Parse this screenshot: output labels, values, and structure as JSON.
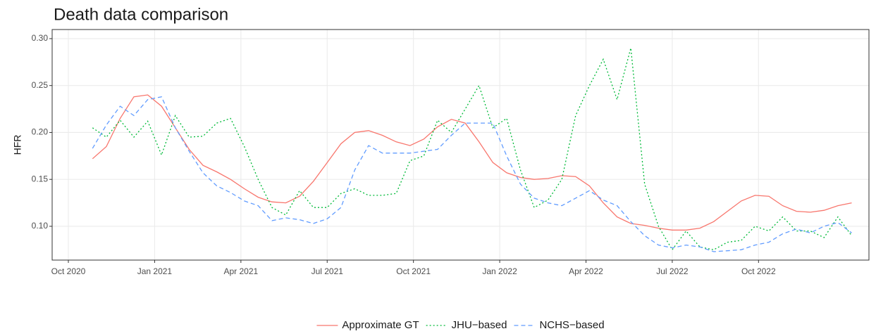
{
  "chart_data": {
    "type": "line",
    "title": "Death data comparison",
    "y_label": "HFR",
    "x": [
      2020.82,
      2020.86,
      2020.9,
      2020.94,
      2020.98,
      2021.02,
      2021.06,
      2021.1,
      2021.14,
      2021.18,
      2021.22,
      2021.26,
      2021.3,
      2021.34,
      2021.38,
      2021.42,
      2021.46,
      2021.5,
      2021.54,
      2021.58,
      2021.62,
      2021.66,
      2021.7,
      2021.74,
      2021.78,
      2021.82,
      2021.86,
      2021.9,
      2021.94,
      2021.98,
      2022.02,
      2022.06,
      2022.1,
      2022.14,
      2022.18,
      2022.22,
      2022.26,
      2022.3,
      2022.34,
      2022.38,
      2022.42,
      2022.46,
      2022.5,
      2022.54,
      2022.58,
      2022.62,
      2022.66,
      2022.7,
      2022.74,
      2022.78,
      2022.82,
      2022.86,
      2022.9,
      2022.94,
      2022.98,
      2023.02
    ],
    "series": [
      {
        "name": "Approximate GT",
        "color": "#F8766D",
        "linetype": "solid",
        "values": [
          0.172,
          0.185,
          0.215,
          0.238,
          0.24,
          0.228,
          0.205,
          0.182,
          0.165,
          0.158,
          0.15,
          0.14,
          0.131,
          0.126,
          0.125,
          0.132,
          0.148,
          0.168,
          0.188,
          0.2,
          0.202,
          0.197,
          0.19,
          0.186,
          0.193,
          0.206,
          0.214,
          0.21,
          0.19,
          0.168,
          0.157,
          0.152,
          0.15,
          0.151,
          0.154,
          0.153,
          0.143,
          0.125,
          0.11,
          0.103,
          0.101,
          0.098,
          0.096,
          0.096,
          0.098,
          0.105,
          0.116,
          0.127,
          0.133,
          0.132,
          0.122,
          0.116,
          0.115,
          0.117,
          0.122,
          0.125
        ]
      },
      {
        "name": "JHU−based",
        "color": "#00BA38",
        "linetype": "dotted",
        "values": [
          0.205,
          0.195,
          0.213,
          0.195,
          0.212,
          0.176,
          0.218,
          0.195,
          0.196,
          0.21,
          0.215,
          0.185,
          0.15,
          0.12,
          0.112,
          0.138,
          0.12,
          0.12,
          0.135,
          0.14,
          0.133,
          0.133,
          0.135,
          0.17,
          0.175,
          0.213,
          0.2,
          0.225,
          0.25,
          0.205,
          0.215,
          0.16,
          0.12,
          0.128,
          0.15,
          0.218,
          0.25,
          0.278,
          0.235,
          0.29,
          0.145,
          0.1,
          0.075,
          0.095,
          0.078,
          0.075,
          0.083,
          0.085,
          0.1,
          0.095,
          0.11,
          0.095,
          0.095,
          0.088,
          0.11,
          0.09
        ]
      },
      {
        "name": "NCHS−based",
        "color": "#619CFF",
        "linetype": "dashed",
        "values": [
          0.183,
          0.208,
          0.228,
          0.218,
          0.235,
          0.238,
          0.205,
          0.18,
          0.157,
          0.143,
          0.136,
          0.127,
          0.122,
          0.106,
          0.109,
          0.107,
          0.103,
          0.108,
          0.12,
          0.16,
          0.186,
          0.178,
          0.178,
          0.178,
          0.18,
          0.182,
          0.197,
          0.21,
          0.21,
          0.21,
          0.175,
          0.145,
          0.13,
          0.125,
          0.122,
          0.13,
          0.138,
          0.128,
          0.122,
          0.105,
          0.09,
          0.08,
          0.077,
          0.08,
          0.078,
          0.073,
          0.074,
          0.075,
          0.08,
          0.083,
          0.092,
          0.097,
          0.093,
          0.1,
          0.104,
          0.093
        ]
      }
    ],
    "xlim": [
      2020.703,
      2023.07
    ],
    "xticks": [
      {
        "value": 2020.75,
        "label": "Oct 2020"
      },
      {
        "value": 2021.0,
        "label": "Jan 2021"
      },
      {
        "value": 2021.25,
        "label": "Apr 2021"
      },
      {
        "value": 2021.5,
        "label": "Jul 2021"
      },
      {
        "value": 2021.75,
        "label": "Oct 2021"
      },
      {
        "value": 2022.0,
        "label": "Jan 2022"
      },
      {
        "value": 2022.25,
        "label": "Apr 2022"
      },
      {
        "value": 2022.5,
        "label": "Jul 2022"
      },
      {
        "value": 2022.75,
        "label": "Oct 2022"
      }
    ],
    "ylim": [
      0.064,
      0.3097
    ],
    "yticks": [
      {
        "value": 0.1,
        "label": "0.10"
      },
      {
        "value": 0.15,
        "label": "0.15"
      },
      {
        "value": 0.2,
        "label": "0.20"
      },
      {
        "value": 0.25,
        "label": "0.25"
      },
      {
        "value": 0.3,
        "label": "0.30"
      }
    ],
    "grid": true,
    "legend": "bottom"
  }
}
